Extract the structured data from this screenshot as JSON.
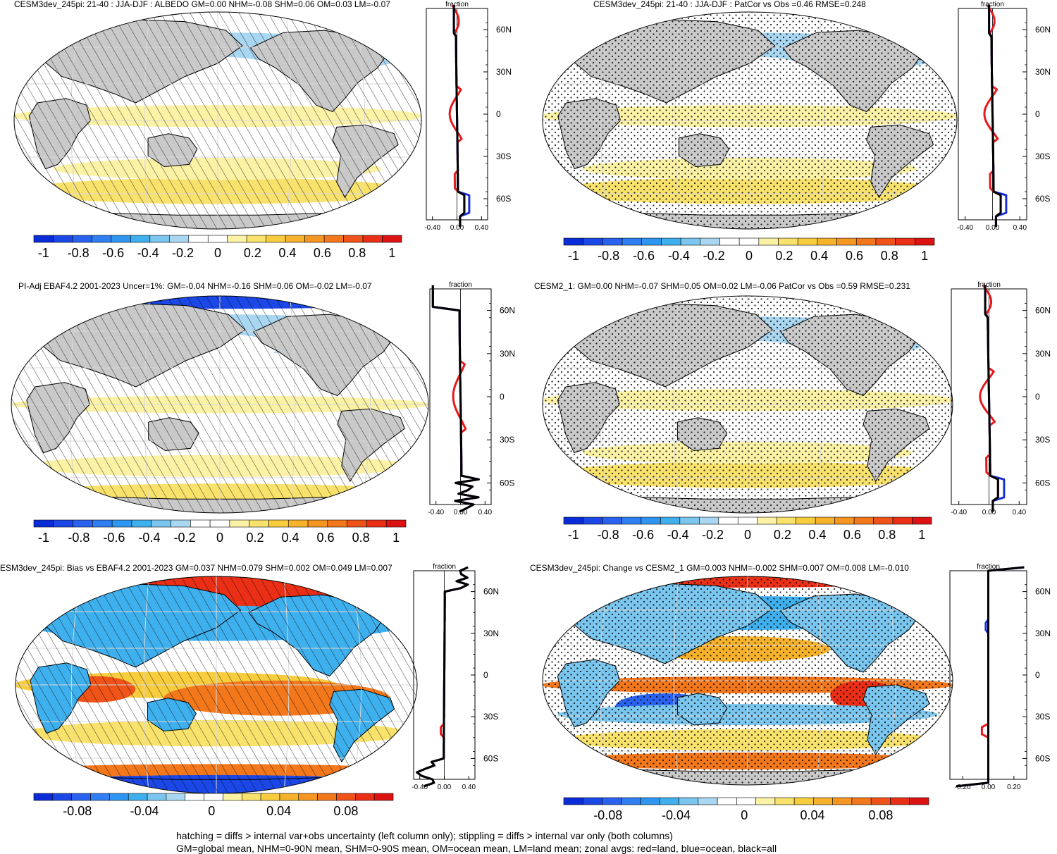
{
  "colors": {
    "land": "#c9c9c9",
    "ocean_neutral": "#ffffff",
    "red_line": "#e8191c",
    "blue_line": "#1a2fd6",
    "black_line": "#000000",
    "colorbar": [
      "#0a2cd8",
      "#1b47e6",
      "#2a62f0",
      "#2f7ef2",
      "#2e96f0",
      "#3fb0ee",
      "#7ac6ef",
      "#a9d6f1",
      "#ffffff",
      "#ffffff",
      "#fbf2a6",
      "#f8e26c",
      "#f7cd3e",
      "#f6b22b",
      "#f59522",
      "#f3771b",
      "#f05318",
      "#ea2f16",
      "#dd1313"
    ]
  },
  "panels": [
    {
      "id": "p1",
      "title": "CESM3dev_245pi: 21-40 : JJA-DJF : ALBEDO GM=0.00 NHM=-0.08 SHM=0.06 OM=0.03 LM=-0.07",
      "profile_xlabel": "fraction",
      "profile_xticks": [
        "-0.40",
        "0.00",
        "0.40"
      ],
      "profile_xrange": [
        -0.5,
        0.5
      ],
      "lat_ticks": [
        "60N",
        "30N",
        "0",
        "30S",
        "60S"
      ],
      "colorbar_labels": [
        "-1",
        "-0.8",
        "-0.6",
        "-0.4",
        "-0.2",
        "0",
        "0.2",
        "0.4",
        "0.6",
        "0.8",
        "1"
      ],
      "overlay": "hatch",
      "profile_mode": "albedo"
    },
    {
      "id": "p2",
      "title": "CESM3dev_245pi: 21-40 : JJA-DJF : PatCor vs Obs =0.46 RMSE=0.248",
      "profile_xlabel": "fraction",
      "profile_xticks": [
        "-0.40",
        "0.00",
        "0.40"
      ],
      "profile_xrange": [
        -0.5,
        0.5
      ],
      "lat_ticks": [
        "60N",
        "30N",
        "0",
        "30S",
        "60S"
      ],
      "colorbar_labels": [
        "-1",
        "-0.8",
        "-0.6",
        "-0.4",
        "-0.2",
        "0",
        "0.2",
        "0.4",
        "0.6",
        "0.8",
        "1"
      ],
      "overlay": "stipple",
      "profile_mode": "albedo"
    },
    {
      "id": "p3",
      "title": "PI-Adj EBAF4.2 2001-2023 Uncer=1%: GM=-0.04 NHM=-0.16 SHM=0.06 OM=-0.02 LM=-0.07",
      "profile_xlabel": "fraction",
      "profile_xticks": [
        "-0.40",
        "0.00",
        "0.40"
      ],
      "profile_xrange": [
        -0.5,
        0.5
      ],
      "lat_ticks": [
        "60N",
        "30N",
        "0",
        "30S",
        "60S"
      ],
      "colorbar_labels": [
        "-1",
        "-0.8",
        "-0.6",
        "-0.4",
        "-0.2",
        "0",
        "0.2",
        "0.4",
        "0.6",
        "0.8",
        "1"
      ],
      "overlay": "hatch",
      "profile_mode": "obs"
    },
    {
      "id": "p4",
      "title": "CESM2_1: GM=0.00 NHM=-0.07 SHM=0.05 OM=0.02 LM=-0.06 PatCor vs Obs =0.59 RMSE=0.231",
      "profile_xlabel": "fraction",
      "profile_xticks": [
        "-0.40",
        "0.00",
        "0.40"
      ],
      "profile_xrange": [
        -0.5,
        0.5
      ],
      "lat_ticks": [
        "60N",
        "30N",
        "0",
        "30S",
        "60S"
      ],
      "colorbar_labels": [
        "-1",
        "-0.8",
        "-0.6",
        "-0.4",
        "-0.2",
        "0",
        "0.2",
        "0.4",
        "0.6",
        "0.8",
        "1"
      ],
      "overlay": "stipple",
      "profile_mode": "albedo"
    },
    {
      "id": "p5",
      "title": "ESM3dev_245pi: Bias vs EBAF4.2 2001-2023 GM=0.037 NHM=0.079 SHM=0.002 OM=0.049 LM=0.007",
      "profile_xlabel": "fraction",
      "profile_xticks": [
        "-0.40",
        "0.00",
        "0.40"
      ],
      "profile_xrange": [
        -0.5,
        0.5
      ],
      "lat_ticks": [
        "60N",
        "30N",
        "0",
        "30S",
        "60S"
      ],
      "colorbar_labels": [
        "-0.08",
        "-0.04",
        "0",
        "0.04",
        "0.08"
      ],
      "overlay": "hatch",
      "profile_mode": "bias"
    },
    {
      "id": "p6",
      "title": "CESM3dev_245pi: Change vs CESM2_1 GM=0.003 NHM=-0.002 SHM=0.007 OM=0.008 LM=-0.010",
      "profile_xlabel": "fraction",
      "profile_xticks": [
        "-0.20",
        "0.00",
        "0.20"
      ],
      "profile_xrange": [
        -0.3,
        0.3
      ],
      "lat_ticks": [
        "60N",
        "30N",
        "0",
        "30S",
        "60S"
      ],
      "colorbar_labels": [
        "-0.08",
        "-0.04",
        "0",
        "0.04",
        "0.08"
      ],
      "overlay": "stipple",
      "profile_mode": "change"
    }
  ],
  "footer": {
    "line1": "hatching = diffs > internal var+obs uncertainty (left column only); stippling = diffs > internal var only (both columns)",
    "line2": "GM=global mean, NHM=0-90N mean, SHM=0-90S mean, OM=ocean mean, LM=land mean; zonal avgs: red=land, blue=ocean, black=all"
  }
}
